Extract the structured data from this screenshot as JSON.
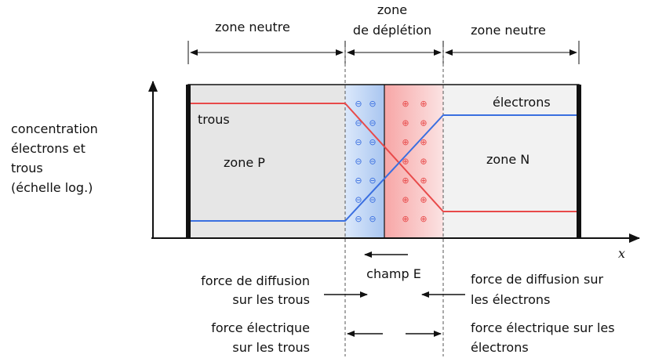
{
  "zones": {
    "neutral_left": "zone neutre",
    "depletion_line1": "zone",
    "depletion_line2": "de déplétion",
    "neutral_right": "zone neutre"
  },
  "axis": {
    "ylabel_line1": "concentration",
    "ylabel_line2": "électrons et",
    "ylabel_line3": "trous",
    "ylabel_line4": "(échelle log.)",
    "xlabel": "x"
  },
  "regions": {
    "p": "zone P",
    "n": "zone N"
  },
  "curves": {
    "holes": "trous",
    "electrons": "électrons",
    "holes_color": "#e84a4a",
    "electrons_color": "#3a6fe0"
  },
  "charges": {
    "negative_symbol": "⊖",
    "positive_symbol": "⊕",
    "negative_color": "#3a6fe0",
    "positive_color": "#e84a4a"
  },
  "field": {
    "label": "champ E"
  },
  "forces": {
    "diffusion_holes_line1": "force de diffusion",
    "diffusion_holes_line2": "sur les trous",
    "diffusion_electrons_line1": "force de diffusion sur",
    "diffusion_electrons_line2": "les électrons",
    "electric_holes_line1": "force électrique",
    "electric_holes_line2": "sur les trous",
    "electric_electrons_line1": "force électrique sur les",
    "electric_electrons_line2": "électrons"
  }
}
